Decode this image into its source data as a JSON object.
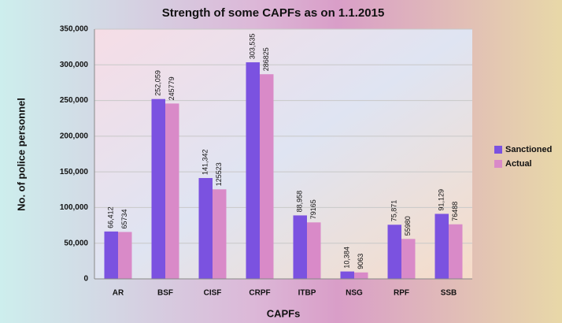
{
  "chart_data": {
    "type": "bar",
    "title": "Strength of some CAPFs as on 1.1.2015",
    "x_label": "CAPFs",
    "y_label": "No. of police personnel",
    "categories": [
      "AR",
      "BSF",
      "CISF",
      "CRPF",
      "ITBP",
      "NSG",
      "RPF",
      "SSB"
    ],
    "series": [
      {
        "name": "Sanctioned",
        "color": "#7b52e0",
        "values": [
          66412,
          252059,
          141342,
          303535,
          88958,
          10384,
          75871,
          91129
        ],
        "value_labels": [
          "66,412",
          "252,059",
          "141,342",
          "303,535",
          "88,958",
          "10,384",
          "75,871",
          "91,129"
        ]
      },
      {
        "name": "Actual",
        "color": "#d98ac8",
        "values": [
          65734,
          245779,
          125523,
          286825,
          79165,
          9063,
          55980,
          76488
        ]
      }
    ],
    "ylim": [
      0,
      350000
    ],
    "yticks": [
      0,
      {
        "value": 50000,
        "label": "50,000"
      },
      {
        "value": 100000,
        "label": "100,000"
      },
      {
        "value": 150000,
        "label": "150,000"
      },
      {
        "value": 200000,
        "label": "200,000"
      },
      {
        "value": 250000,
        "label": "250,000"
      },
      {
        "value": 300000,
        "label": "300,000"
      },
      {
        "value": 350000,
        "label": "350,000"
      }
    ],
    "grid": true,
    "legend": "right"
  }
}
